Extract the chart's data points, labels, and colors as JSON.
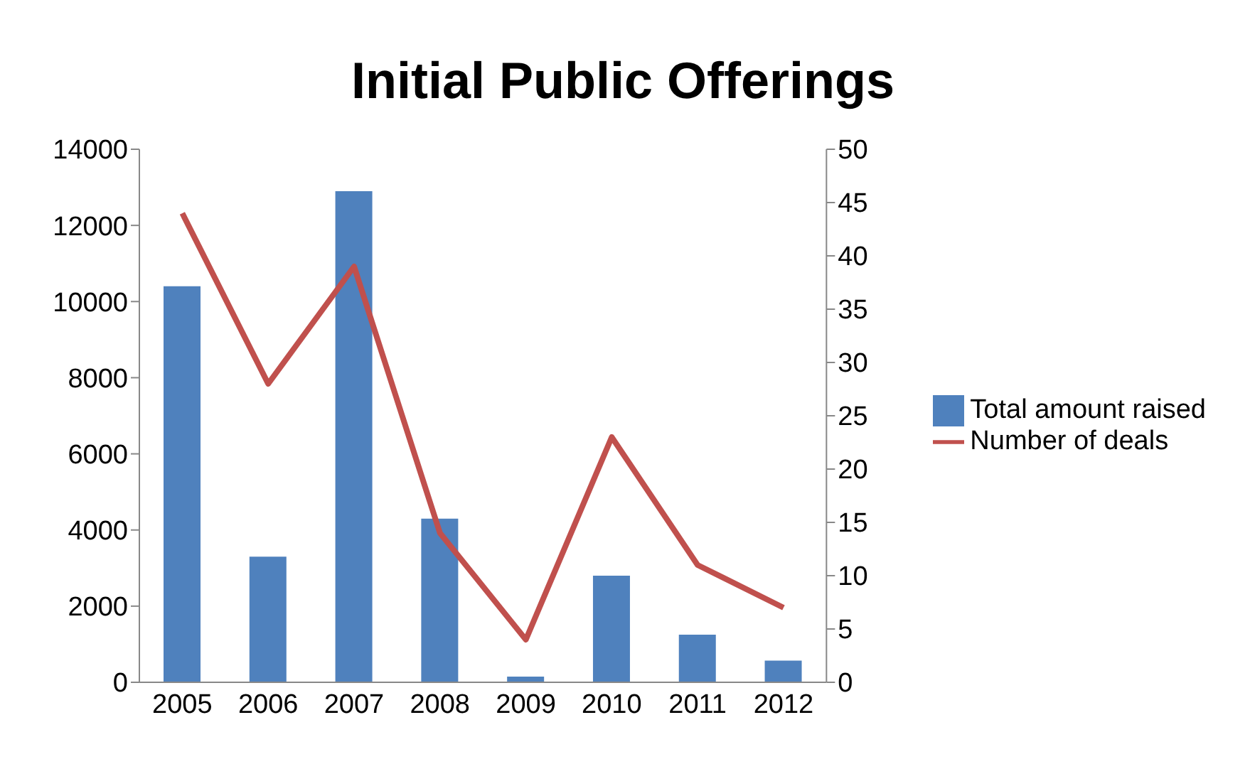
{
  "chart_data": {
    "type": "bar",
    "title": "Initial Public Offerings",
    "categories": [
      "2005",
      "2006",
      "2007",
      "2008",
      "2009",
      "2010",
      "2011",
      "2012"
    ],
    "series": [
      {
        "name": "Total amount raised",
        "color": "#4f81bd",
        "values": [
          10400,
          3300,
          12900,
          4300,
          150,
          2800,
          1250,
          570
        ]
      },
      {
        "name": "Number of deals",
        "type": "line",
        "axis": "y2",
        "color": "#c0504d",
        "values": [
          44,
          28,
          39,
          14,
          4,
          23,
          11,
          7
        ]
      }
    ],
    "ylim": [
      0,
      14000
    ],
    "yticks": [
      0,
      2000,
      4000,
      6000,
      8000,
      10000,
      12000,
      14000
    ],
    "y2lim": [
      0,
      50
    ],
    "y2ticks": [
      0,
      5,
      10,
      15,
      20,
      25,
      30,
      35,
      40,
      45,
      50
    ],
    "grid": false,
    "legend": "right",
    "marker": "none",
    "line_style": "solid"
  }
}
